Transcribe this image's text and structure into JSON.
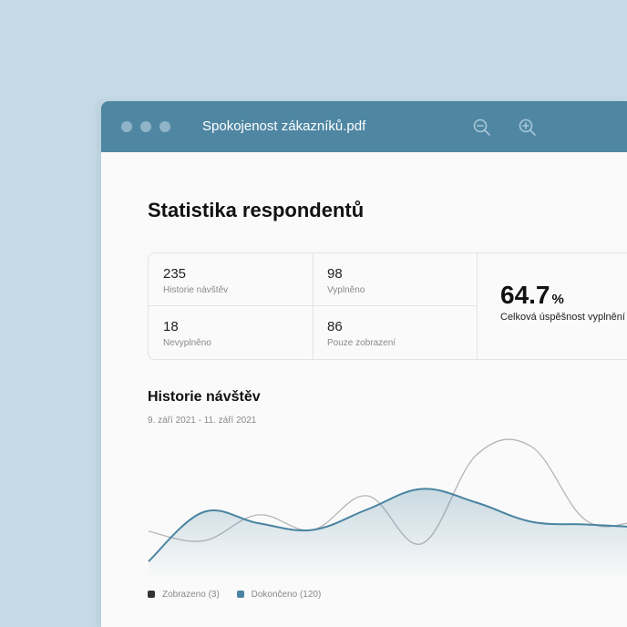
{
  "window": {
    "title": "Spokojenost zákazníků.pdf",
    "titlebar_color": "#4f87a3",
    "icons": [
      "zoom-out-icon",
      "zoom-in-icon"
    ]
  },
  "heading": "Statistika respondentů",
  "stats": {
    "cells": [
      {
        "value": "235",
        "label": "Historie návštěv"
      },
      {
        "value": "98",
        "label": "Vyplněno"
      },
      {
        "value": "18",
        "label": "Nevyplněno"
      },
      {
        "value": "86",
        "label": "Pouze zobrazení"
      }
    ],
    "big": {
      "value": "64.7",
      "unit": "%",
      "label": "Celková úspěšnost vyplnění"
    }
  },
  "visits": {
    "title": "Historie návštěv",
    "date_range": "9. září 2021 - 11. září 2021"
  },
  "chart_data": {
    "type": "line",
    "x": [
      0,
      1,
      2,
      3,
      4,
      5,
      6,
      7,
      8,
      9,
      10,
      11
    ],
    "series": [
      {
        "name": "Zobrazeno (3)",
        "color": "#b5b5b5",
        "values": [
          22,
          15,
          34,
          23,
          48,
          13,
          78,
          84,
          30,
          29,
          29,
          30
        ]
      },
      {
        "name": "Dokončeno (120)",
        "color": "#4a84a1",
        "values": [
          0,
          36,
          28,
          23,
          38,
          53,
          43,
          29,
          27,
          25,
          24,
          23
        ]
      }
    ],
    "ylim": [
      0,
      100
    ],
    "grid": false,
    "legend": "bottom-left",
    "area_fill": "Dokončeno (120)"
  },
  "legend": [
    {
      "label": "Zobrazeno (3)",
      "color": "#333333"
    },
    {
      "label": "Dokončeno (120)",
      "color": "#4a84a1"
    }
  ]
}
